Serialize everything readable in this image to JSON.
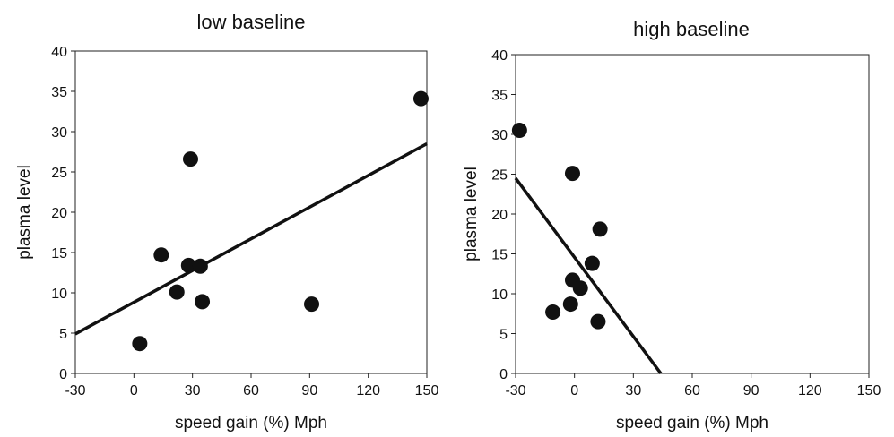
{
  "chart_data": [
    {
      "type": "scatter",
      "title": "low baseline",
      "xlabel": "speed gain (%) Mph",
      "ylabel": "plasma level",
      "xlim": [
        -30,
        150
      ],
      "ylim": [
        0,
        40
      ],
      "xticks": [
        "-30",
        "0",
        "30",
        "60",
        "90",
        "120",
        "150"
      ],
      "yticks": [
        "0",
        "5",
        "10",
        "15",
        "20",
        "25",
        "30",
        "35",
        "40"
      ],
      "grid": false,
      "points": [
        {
          "x": 3,
          "y": 3.7
        },
        {
          "x": 14,
          "y": 14.7
        },
        {
          "x": 22,
          "y": 10.1
        },
        {
          "x": 28,
          "y": 13.4
        },
        {
          "x": 29,
          "y": 26.6
        },
        {
          "x": 34,
          "y": 13.3
        },
        {
          "x": 35,
          "y": 8.9
        },
        {
          "x": 91,
          "y": 8.6
        },
        {
          "x": 147,
          "y": 34.1
        }
      ],
      "fit_line": {
        "x": [
          -30,
          150
        ],
        "y": [
          4.9,
          28.5
        ]
      }
    },
    {
      "type": "scatter",
      "title": "high baseline",
      "xlabel": "speed gain (%) Mph",
      "ylabel": "plasma level",
      "xlim": [
        -30,
        150
      ],
      "ylim": [
        0,
        40
      ],
      "xticks": [
        "-30",
        "0",
        "30",
        "60",
        "90",
        "120",
        "150"
      ],
      "yticks": [
        "0",
        "5",
        "10",
        "15",
        "20",
        "25",
        "30",
        "35",
        "40"
      ],
      "grid": false,
      "points": [
        {
          "x": -28,
          "y": 30.5
        },
        {
          "x": -11,
          "y": 7.7
        },
        {
          "x": -2,
          "y": 8.7
        },
        {
          "x": -1,
          "y": 11.7
        },
        {
          "x": -1,
          "y": 25.1
        },
        {
          "x": 3,
          "y": 10.7
        },
        {
          "x": 9,
          "y": 13.8
        },
        {
          "x": 12,
          "y": 6.5
        },
        {
          "x": 13,
          "y": 18.1
        }
      ],
      "fit_line": {
        "x": [
          -30,
          44
        ],
        "y": [
          24.5,
          0
        ]
      }
    }
  ]
}
